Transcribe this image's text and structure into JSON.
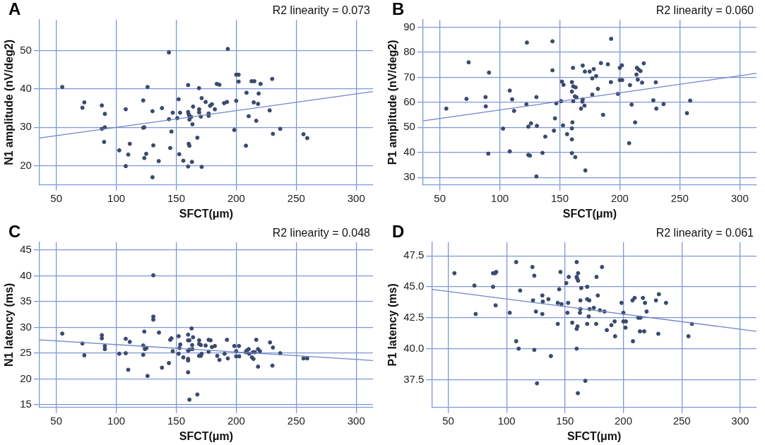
{
  "chart_data": [
    {
      "type": "scatter",
      "title": "A",
      "xlabel": "SFCT(μm)",
      "ylabel": "N1 amplitude (nV/deg2)",
      "annotations": [
        "R2 linearity = 0.073"
      ],
      "xlim": [
        36,
        314
      ],
      "xticks": [
        50,
        100,
        150,
        200,
        250,
        300
      ],
      "ylim": [
        15,
        58
      ],
      "yticks": [
        20,
        30,
        40,
        50
      ],
      "grid": true,
      "marker": "circle",
      "series": [
        {
          "color": "#3b4a6e",
          "x": [
            55,
            73.4,
            71.8,
            88,
            90.5,
            90.5,
            88,
            89.9,
            107.9,
            102.5,
            110,
            107.9,
            111.3,
            122.5,
            126.1,
            122.5,
            123.4,
            125,
            123.4,
            130.2,
            130.9,
            130.2,
            135.4,
            138.1,
            143.9,
            143.9,
            146,
            145,
            147.1,
            150.9,
            152,
            153.2,
            152.5,
            155.9,
            159.9,
            159.9,
            160.4,
            161,
            161,
            162.4,
            163.5,
            164,
            160.4,
            161,
            159.9,
            163.1,
            167.6,
            169,
            169.1,
            169.1,
            170.5,
            171.2,
            171.2,
            174.5,
            177,
            177,
            178.2,
            179.7,
            182.2,
            183.8,
            186,
            189.9,
            192.3,
            193,
            198.4,
            200,
            200,
            202,
            202,
            208.1,
            208.6,
            210.4,
            212.8,
            215.1,
            214.6,
            216.7,
            218.2,
            218.7,
            220.3,
            227.9,
            230,
            230.6,
            236.7,
            256.1,
            259.2
          ],
          "values": [
            40.5,
            36.5,
            35.1,
            35.7,
            33.5,
            30.0,
            29.6,
            26.2,
            34.7,
            24.0,
            22.9,
            19.9,
            25.7,
            37.0,
            40.5,
            29.9,
            30.0,
            23.1,
            22.0,
            34.2,
            25.3,
            17.0,
            21.2,
            35.0,
            49.5,
            32.1,
            28.9,
            24.6,
            33.8,
            32.4,
            37.3,
            33.8,
            23.0,
            21.3,
            41.0,
            34.0,
            33.4,
            32.9,
            32.0,
            32.7,
            30.8,
            35.4,
            25.7,
            25.2,
            19.8,
            21.0,
            27.3,
            40.2,
            34.7,
            33.9,
            32.8,
            37.6,
            19.7,
            36.6,
            33.6,
            33.0,
            35.6,
            36.0,
            34.7,
            41.3,
            41.1,
            36.3,
            36.6,
            50.4,
            29.3,
            36.9,
            43.7,
            43.7,
            41.9,
            25.2,
            39.0,
            32.9,
            42.0,
            42.0,
            36.5,
            31.7,
            36.1,
            38.8,
            41.3,
            34.4,
            42.6,
            28.3,
            29.6,
            28.2,
            27.2
          ]
        },
        {
          "type": "line",
          "marker": "none",
          "color": "#6e85c8",
          "x": [
            36,
            314
          ],
          "values": [
            27.2,
            39.3
          ]
        }
      ]
    },
    {
      "type": "scatter",
      "title": "B",
      "xlabel": "SFCT(μm)",
      "ylabel": "P1 amplitude (nV/deg2)",
      "annotations": [
        "R2 linearity = 0.060"
      ],
      "xlim": [
        36,
        314
      ],
      "xticks": [
        50,
        100,
        150,
        200,
        250,
        300
      ],
      "ylim": [
        27,
        93
      ],
      "yticks": [
        30,
        40,
        50,
        60,
        70,
        80,
        90
      ],
      "grid": true,
      "marker": "circle",
      "series": [
        {
          "color": "#3b4a6e",
          "x": [
            55.4,
            72.2,
            74,
            88.1,
            88.3,
            91,
            90.4,
            102.7,
            108.3,
            110.3,
            111.9,
            108.3,
            122.2,
            123.8,
            126,
            122.6,
            123.8,
            125.1,
            130.5,
            130.9,
            130.5,
            135.6,
            137.9,
            143.9,
            143.9,
            146,
            145.1,
            147.1,
            151.1,
            151.8,
            153.1,
            152.7,
            156.1,
            160.1,
            160.1,
            161,
            161.2,
            163.2,
            162.6,
            163.9,
            161.2,
            160.5,
            160.1,
            160.1,
            160.1,
            162.9,
            169.1,
            170.9,
            174.9,
            169.1,
            168.8,
            170.6,
            167.7,
            171.3,
            177.1,
            178.3,
            180.3,
            177.1,
            181.8,
            184.3,
            190.1,
            186.1,
            192.8,
            192.6,
            198.4,
            200,
            201.8,
            200,
            202,
            208.5,
            209.9,
            207.8,
            212.8,
            213.9,
            214.3,
            215.7,
            217.3,
            215,
            218.6,
            220,
            228,
            230,
            230.5,
            236.5,
            256,
            258.7
          ],
          "values": [
            57.5,
            61.4,
            76.0,
            62.1,
            58.4,
            71.9,
            39.5,
            49.5,
            64.7,
            61.2,
            56.6,
            40.4,
            59.2,
            50.3,
            51.6,
            83.9,
            39.0,
            38.7,
            62.1,
            50.6,
            30.4,
            39.8,
            46.3,
            84.4,
            72.8,
            53.6,
            48.7,
            59.6,
            60.5,
            68.3,
            67.0,
            50.8,
            47.3,
            68.1,
            64.3,
            73.8,
            66.4,
            66.0,
            62.4,
            62.0,
            60.5,
            52.0,
            49.6,
            45.2,
            39.7,
            38.1,
            74.7,
            72.3,
            72.3,
            61.2,
            60.3,
            58.7,
            57.5,
            32.8,
            69.6,
            73.3,
            70.5,
            63.1,
            65.4,
            75.7,
            75.2,
            55.0,
            85.4,
            68.1,
            63.4,
            73.8,
            74.8,
            68.9,
            68.9,
            66.9,
            59.1,
            43.7,
            52.0,
            71.1,
            73.8,
            73.1,
            72.5,
            69.1,
            67.9,
            75.6,
            60.8,
            68.0,
            57.5,
            59.3,
            55.7,
            60.7
          ]
        },
        {
          "type": "line",
          "marker": "none",
          "color": "#6e85c8",
          "x": [
            36,
            314
          ],
          "values": [
            52.6,
            71.6
          ]
        }
      ]
    },
    {
      "type": "scatter",
      "title": "C",
      "xlabel": "SFCT(μm)",
      "ylabel": "N1 latency (ms)",
      "annotations": [
        "R2 linearity = 0.048"
      ],
      "xlim": [
        36,
        314
      ],
      "xticks": [
        50,
        100,
        150,
        200,
        250,
        300
      ],
      "ylim": [
        14.5,
        46.5
      ],
      "yticks": [
        15,
        20,
        25,
        30,
        35,
        40,
        45
      ],
      "grid": true,
      "marker": "circle",
      "series": [
        {
          "color": "#3b4a6e",
          "x": [
            55,
            71.8,
            73.4,
            88,
            88,
            90.5,
            90.5,
            102.5,
            107.9,
            107.9,
            111.3,
            110,
            122.5,
            123.4,
            122.5,
            123.9,
            125.2,
            126.1,
            130.9,
            130.9,
            130.9,
            135.6,
            138.1,
            143.9,
            145,
            146,
            147.1,
            152,
            152,
            152.7,
            153.4,
            155.9,
            159.9,
            159.9,
            161,
            159.9,
            161,
            163.5,
            159.9,
            159.9,
            159.9,
            162.8,
            164,
            163.3,
            169.1,
            169.1,
            170.5,
            169,
            170.5,
            171.2,
            161,
            167.6,
            174.5,
            177,
            178.6,
            177,
            179.7,
            182.2,
            184.2,
            186,
            190.3,
            192.3,
            193,
            198.4,
            202.3,
            200,
            200,
            202.5,
            208.1,
            208.6,
            210.4,
            210.8,
            214,
            215.5,
            213.1,
            214.4,
            216.7,
            218.2,
            219.8,
            218.2,
            228.2,
            230.6,
            230.2,
            236.7,
            256.1,
            259.2
          ],
          "values": [
            28.8,
            26.9,
            24.6,
            28.5,
            27.9,
            26.4,
            25.8,
            24.9,
            27.8,
            25.0,
            27.2,
            21.8,
            26.5,
            29.2,
            24.7,
            25.8,
            26.0,
            20.6,
            40.1,
            32.1,
            31.5,
            29.0,
            22.2,
            23.1,
            27.6,
            27.9,
            25.4,
            24.9,
            28.3,
            26.0,
            26.7,
            24.2,
            28.6,
            27.5,
            27.5,
            25.5,
            25.7,
            25.8,
            23.9,
            23.6,
            21.3,
            29.8,
            28.1,
            26.6,
            27.5,
            26.8,
            26.6,
            24.5,
            24.5,
            24.9,
            16.0,
            17.0,
            26.5,
            27.6,
            27.5,
            25.3,
            26.2,
            26.4,
            24.5,
            23.7,
            24.9,
            27.6,
            24.0,
            26.4,
            26.4,
            25.4,
            24.4,
            24.4,
            25.2,
            25.5,
            25.8,
            24.9,
            25.2,
            25.2,
            24.2,
            23.9,
            27.6,
            25.8,
            25.4,
            22.4,
            27.1,
            26.1,
            22.6,
            25.0,
            24.0,
            24.0
          ]
        },
        {
          "type": "line",
          "marker": "none",
          "color": "#6e85c8",
          "x": [
            36,
            314
          ],
          "values": [
            27.6,
            23.6
          ]
        }
      ]
    },
    {
      "type": "scatter",
      "title": "D",
      "xlabel": "SFCT(μm)",
      "ylabel": "P1 latency (ms)",
      "annotations": [
        "R2 linearity = 0.061"
      ],
      "xlim": [
        36,
        314
      ],
      "xticks": [
        50,
        100,
        150,
        200,
        250,
        300
      ],
      "ylim": [
        35.25,
        48.6
      ],
      "yticks": [
        37.5,
        {
          "value": 40,
          "label": "40.0"
        },
        42.5,
        {
          "value": 45,
          "label": "45.0"
        },
        47.5
      ],
      "grid": true,
      "marker": "circle",
      "series": [
        {
          "color": "#3b4a6e",
          "x": [
            55.3,
            72.4,
            73.5,
            88.4,
            90.2,
            91.1,
            88.4,
            90.6,
            102.7,
            108.2,
            111.6,
            108.2,
            110.3,
            122.1,
            123.7,
            122.6,
            125.1,
            123.7,
            126,
            130.6,
            131,
            130.6,
            135.8,
            137.9,
            146.1,
            145,
            143.8,
            147,
            143.8,
            151.1,
            153.2,
            152.7,
            152.1,
            156.2,
            160,
            161.2,
            160,
            160.3,
            161.2,
            163.2,
            163.2,
            162.8,
            160.7,
            160,
            160,
            163.9,
            169,
            169,
            170.8,
            171,
            170.3,
            169,
            167.4,
            161,
            174.7,
            178.1,
            177,
            176.7,
            179.9,
            183.8,
            181.7,
            185.8,
            189.7,
            192.5,
            192.9,
            198.4,
            200,
            200,
            202.1,
            201.8,
            207.8,
            209.6,
            208.2,
            212.8,
            214.6,
            214.2,
            217.8,
            216.7,
            218.5,
            219.9,
            227.9,
            230.4,
            229.9,
            236.5,
            255.7,
            258.7
          ],
          "values": [
            46.1,
            45.1,
            42.8,
            46.1,
            46.1,
            46.2,
            45.0,
            43.5,
            42.9,
            47.0,
            44.7,
            40.6,
            40.0,
            46.6,
            45.9,
            43.9,
            43.0,
            39.9,
            37.2,
            44.3,
            43.8,
            42.8,
            44.0,
            39.4,
            46.2,
            44.8,
            43.7,
            43.6,
            42.0,
            45.3,
            45.8,
            43.7,
            42.9,
            42.1,
            47.0,
            46.1,
            45.8,
            45.7,
            45.5,
            43.9,
            43.2,
            42.9,
            41.8,
            41.6,
            40.0,
            44.9,
            45.0,
            44.0,
            43.9,
            43.2,
            42.6,
            42.0,
            37.4,
            36.4,
            43.3,
            44.3,
            45.8,
            42.0,
            43.1,
            43.0,
            46.6,
            41.5,
            41.9,
            42.2,
            41.0,
            43.7,
            42.9,
            42.2,
            42.2,
            41.7,
            43.9,
            44.1,
            40.6,
            42.5,
            42.5,
            41.4,
            41.4,
            44.1,
            43.7,
            43.0,
            43.9,
            44.4,
            41.2,
            43.7,
            41.0,
            42.0
          ]
        },
        {
          "type": "line",
          "marker": "none",
          "color": "#6e85c8",
          "x": [
            36,
            314
          ],
          "values": [
            44.8,
            41.4
          ]
        }
      ]
    }
  ]
}
